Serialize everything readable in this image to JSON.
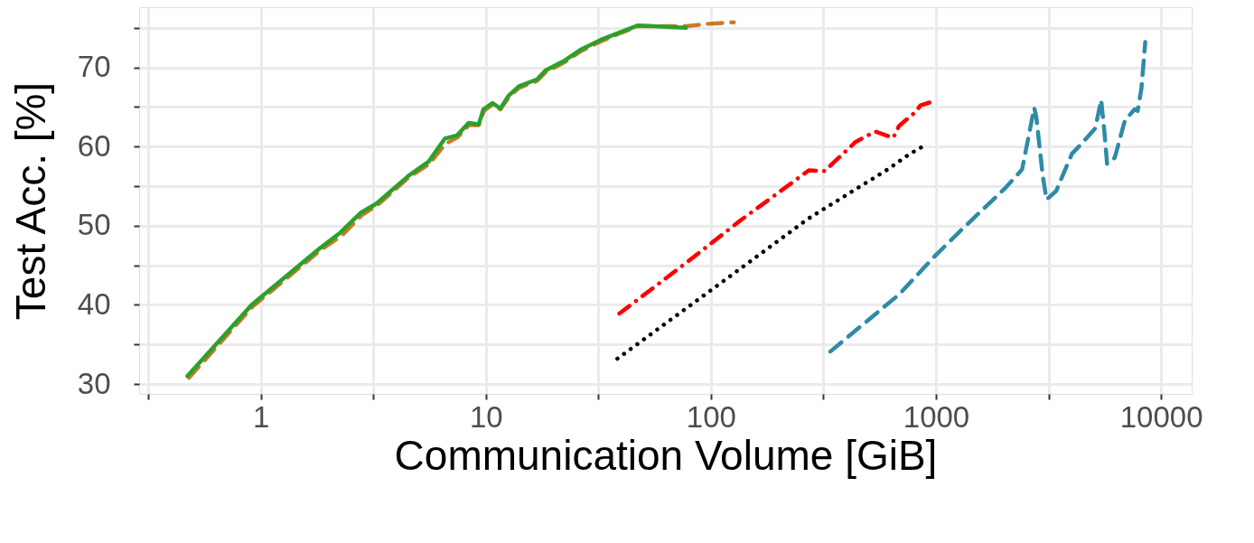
{
  "chart_data": {
    "type": "line",
    "xlabel": "Communication Volume [GiB]",
    "ylabel": "Test Acc. [%]",
    "log": "x",
    "grid": true,
    "xlim": [
      0.288,
      13680
    ],
    "ylim": [
      28.75,
      77.6
    ],
    "xticks": [
      {
        "value": 0.316,
        "label": null
      },
      1,
      {
        "value": 3.16,
        "label": null
      },
      10,
      {
        "value": 31.6,
        "label": null
      },
      100,
      {
        "value": 316,
        "label": null
      },
      1000,
      {
        "value": 3162,
        "label": null
      },
      10000
    ],
    "yticks": [
      30,
      {
        "value": 35,
        "label": null
      },
      40,
      {
        "value": 45,
        "label": null
      },
      50,
      {
        "value": 55,
        "label": null
      },
      60,
      {
        "value": 65,
        "label": null
      },
      70,
      {
        "value": 75,
        "label": null
      }
    ],
    "series": [
      {
        "color": "#cc7a2a",
        "line_style": "dashed",
        "x": [
          0.48,
          0.92,
          1.84,
          2.3,
          2.8,
          3.3,
          4.5,
          5.6,
          6.6,
          7.5,
          8.4,
          9.3,
          9.8,
          10.7,
          11.6,
          12.6,
          14.0,
          16.9,
          18.4,
          22.5,
          26.6,
          32.5,
          40.1,
          47.4,
          77.5,
          96.6,
          126.5
        ],
        "values": [
          30.8,
          39.8,
          46.9,
          48.8,
          51.3,
          52.6,
          56.0,
          57.8,
          60.3,
          61.2,
          62.7,
          62.7,
          64.5,
          65.3,
          64.7,
          66.2,
          67.4,
          68.3,
          69.4,
          70.7,
          72.1,
          73.3,
          74.4,
          75.2,
          75.2,
          75.5,
          75.7
        ]
      },
      {
        "color": "#2ca02c",
        "line_style": "solid",
        "x": [
          0.472,
          0.91,
          1.84,
          2.25,
          2.77,
          3.27,
          4.53,
          5.57,
          6.57,
          7.43,
          8.4,
          9.3,
          9.75,
          10.7,
          11.6,
          12.6,
          14.0,
          16.9,
          18.4,
          22.5,
          26.6,
          32.5,
          40.1,
          47.4,
          77.5
        ],
        "values": [
          31.0,
          40.0,
          47.2,
          49.1,
          51.6,
          52.8,
          56.3,
          58.1,
          61.0,
          61.4,
          63.0,
          62.8,
          64.7,
          65.5,
          64.8,
          66.4,
          67.6,
          68.5,
          69.6,
          70.9,
          72.3,
          73.5,
          74.5,
          75.3,
          75.0
        ]
      },
      {
        "color": "#ff0000",
        "line_style": "dashdot",
        "x": [
          39.2,
          79.2,
          132.9,
          272.4,
          319.8,
          440,
          537,
          646,
          685,
          806,
          854,
          945
        ],
        "values": [
          38.9,
          45.5,
          50.5,
          57.0,
          56.9,
          60.6,
          61.9,
          61.1,
          62.6,
          64.3,
          65.2,
          65.6
        ]
      },
      {
        "color": "#000000",
        "line_style": "dotted",
        "x": [
          38.4,
          104,
          271,
          609,
          749,
          897
        ],
        "values": [
          33.2,
          42.2,
          50.9,
          57.1,
          58.9,
          60.2
        ]
      },
      {
        "color": "#2e8ba7",
        "line_style": "dashed",
        "x": [
          339,
          685,
          976,
          1322,
          2023,
          2413,
          2732,
          2790,
          2978,
          3100,
          3423,
          4020,
          4350,
          5100,
          5420,
          5600,
          5760,
          6230,
          6910,
          7630,
          7870,
          8180,
          8510
        ],
        "values": [
          34.1,
          41.3,
          46.0,
          49.7,
          54.7,
          57.1,
          64.9,
          63.8,
          56.4,
          53.3,
          54.4,
          59.1,
          60.1,
          62.3,
          65.9,
          61.9,
          57.8,
          58.6,
          63.3,
          64.7,
          64.5,
          67.3,
          73.2
        ]
      }
    ]
  }
}
